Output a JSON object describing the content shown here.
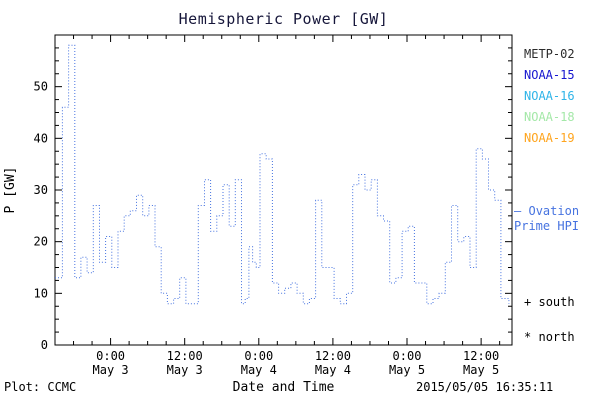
{
  "title": "Hemispheric Power [GW]",
  "legend": {
    "satellites": [
      {
        "label": "METP-02",
        "color": "#2b2b2b"
      },
      {
        "label": "NOAA-15",
        "color": "#1616d0"
      },
      {
        "label": "NOAA-16",
        "color": "#2fb4e8"
      },
      {
        "label": "NOAA-18",
        "color": "#a4e8a8"
      },
      {
        "label": "NOAA-19",
        "color": "#ffa51e"
      }
    ],
    "ovation": {
      "marker": "—",
      "line1": "Ovation",
      "line2": "Prime HPI",
      "color": "#4673e0"
    },
    "south_marker": "+",
    "south_label": "south",
    "north_marker": "*",
    "north_label": "north"
  },
  "footer": {
    "left": "Plot: CCMC",
    "right": "2015/05/05 16:35:11"
  },
  "chart_data": {
    "type": "line",
    "style": "dotted-step",
    "title": "Hemispheric Power [GW]",
    "xlabel": "Date and Time",
    "ylabel": "P [GW]",
    "series_name": "Ovation Prime HPI",
    "line_color": "#4673e0",
    "grid": false,
    "ylim": [
      0,
      60
    ],
    "y_ticks": [
      0,
      10,
      20,
      30,
      40,
      50
    ],
    "xlim": [
      0,
      74
    ],
    "x_unit": "hours since 2015-05-02 15:00 UT",
    "x_ticks": [
      {
        "t": 9,
        "line1": "0:00",
        "line2": "May 3"
      },
      {
        "t": 21,
        "line1": "12:00",
        "line2": "May 3"
      },
      {
        "t": 33,
        "line1": "0:00",
        "line2": "May 4"
      },
      {
        "t": 45,
        "line1": "12:00",
        "line2": "May 4"
      },
      {
        "t": 57,
        "line1": "0:00",
        "line2": "May 5"
      },
      {
        "t": 69,
        "line1": "12:00",
        "line2": "May 5"
      }
    ],
    "t": [
      0,
      1.2,
      2.2,
      3.2,
      4.2,
      5.2,
      6.2,
      7.2,
      8.2,
      9.2,
      10.2,
      11.2,
      12.2,
      13.2,
      14.2,
      15.2,
      16.2,
      17.2,
      18.2,
      19.2,
      20.2,
      21.2,
      22.2,
      23.2,
      24.2,
      25.2,
      26.2,
      27.2,
      28.2,
      29.2,
      30.2,
      30.8,
      31.4,
      32,
      32.6,
      33.2,
      34.2,
      35.2,
      36.2,
      37.2,
      38.2,
      39.2,
      40.2,
      41.2,
      42.2,
      43.2,
      44.2,
      45.2,
      46.2,
      47.2,
      48.2,
      49.2,
      50.2,
      51.2,
      52.2,
      53.2,
      54.2,
      55.2,
      56.2,
      57.2,
      58.2,
      59.2,
      60.2,
      61.2,
      62.2,
      63.2,
      64.2,
      65.2,
      66.2,
      67.2,
      68.2,
      69.2,
      70.2,
      71.2,
      72.2,
      73,
      73.5
    ],
    "p": [
      13,
      46,
      58,
      13,
      17,
      14,
      27,
      16,
      21,
      15,
      22,
      25,
      26,
      29,
      25,
      27,
      19,
      10,
      8,
      9,
      13,
      8,
      8,
      27,
      32,
      22,
      25,
      31,
      23,
      32,
      8,
      9,
      19,
      16,
      15,
      37,
      36,
      12,
      10,
      11,
      12,
      10,
      8,
      9,
      28,
      15,
      15,
      9,
      8,
      10,
      31,
      33,
      30,
      32,
      25,
      24,
      12,
      13,
      22,
      23,
      12,
      12,
      8,
      9,
      10,
      16,
      27,
      20,
      21,
      15,
      38,
      36,
      30,
      28,
      9,
      9,
      8
    ]
  }
}
